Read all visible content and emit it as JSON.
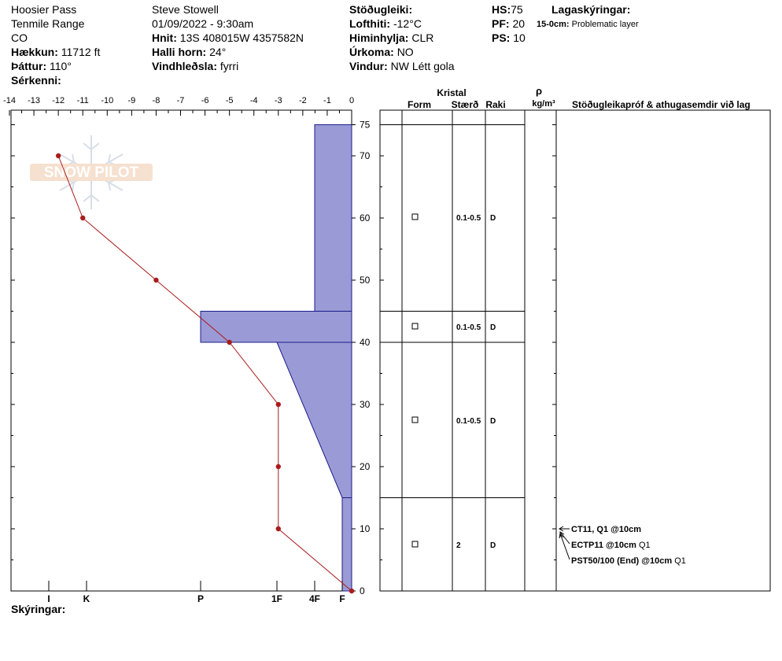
{
  "header": {
    "location": "Hoosier Pass",
    "range": "Tenmile Range",
    "state": "CO",
    "elevation_label": "Hækkun:",
    "elevation_value": "11712 ft",
    "aspect_label": "Þáttur:",
    "aspect_value": "110°",
    "features_label": "Sérkenni:",
    "observer": "Steve Stowell",
    "datetime": "01/09/2022 - 9:30am",
    "coords_label": "Hnit:",
    "coords_value": "13S 408015W 4357582N",
    "slope_label": "Halli horn:",
    "slope_value": "24°",
    "wind_loading_label": "Vindhleðsla:",
    "wind_loading_value": "fyrri",
    "stability_label": "Stöðugleiki:",
    "airtemp_label": "Lofthiti:",
    "airtemp_value": "-12°C",
    "sky_label": "Himinhylja:",
    "sky_value": "CLR",
    "precip_label": "Úrkoma:",
    "precip_value": "NO",
    "wind_label": "Vindur:",
    "wind_value": "NW Létt gola",
    "hs_label": "HS:",
    "hs_value": "75",
    "pf_label": "PF:",
    "pf_value": "20",
    "ps_label": "PS:",
    "ps_value": "10",
    "layer_notes_label": "Lagaskýringar:",
    "layer_note_depth": "15-0cm:",
    "layer_note_text": "Problematic layer",
    "comments_label": "Skýringar:"
  },
  "watermark": {
    "text": "SNOW PILOT"
  },
  "table": {
    "crystal_label": "Kristal",
    "form_label": "Form",
    "size_label": "Stærð",
    "moisture_label": "Raki",
    "rho_label": "ρ",
    "density_unit": "kg/m³",
    "tests_label": "Stöðugleikapróf & athugasemdir við lag",
    "rows": [
      {
        "size": "0.1-0.5",
        "moisture": "D"
      },
      {
        "size": "0.1-0.5",
        "moisture": "D"
      },
      {
        "size": "0.1-0.5",
        "moisture": "D"
      },
      {
        "size": "2",
        "moisture": "D"
      }
    ],
    "tests": [
      {
        "code": "CT11, Q1 @10cm",
        "quality": ""
      },
      {
        "code": "ECTP11 @10cm",
        "quality": "Q1"
      },
      {
        "code": "PST50/100 (End) @10cm",
        "quality": "Q1"
      }
    ]
  },
  "chart_data": {
    "type": "snow-profile",
    "temp_axis": {
      "ticks": [
        "-14",
        "-13",
        "-12",
        "-11",
        "-10",
        "-9",
        "-8",
        "-7",
        "-6",
        "-5",
        "-4",
        "-3",
        "-2",
        "-1",
        "0"
      ],
      "range": [
        -14,
        0
      ]
    },
    "height_axis": {
      "ticks": [
        "75",
        "70",
        "60",
        "50",
        "40",
        "30",
        "20",
        "10",
        "0"
      ],
      "range": [
        0,
        75
      ]
    },
    "hardness_axis": {
      "ticks": [
        "I",
        "K",
        "P",
        "1F",
        "4F",
        "F"
      ]
    },
    "temperature_profile": [
      {
        "height": 70,
        "temp": -12
      },
      {
        "height": 60,
        "temp": -11
      },
      {
        "height": 50,
        "temp": -8
      },
      {
        "height": 40,
        "temp": -5
      },
      {
        "height": 30,
        "temp": -3
      },
      {
        "height": 20,
        "temp": -3
      },
      {
        "height": 10,
        "temp": -3
      },
      {
        "height": 0,
        "temp": 0
      }
    ],
    "layers": [
      {
        "top": 75,
        "bottom": 45,
        "hardness_top": "4F-",
        "hardness_bottom": "4F-"
      },
      {
        "top": 45,
        "bottom": 40,
        "hardness_top": "P",
        "hardness_bottom": "P"
      },
      {
        "top": 40,
        "bottom": 15,
        "hardness_top": "1F",
        "hardness_bottom": "F"
      },
      {
        "top": 15,
        "bottom": 0,
        "hardness_top": "F",
        "hardness_bottom": "F"
      }
    ],
    "colors": {
      "layer_fill": "#9a9ad6",
      "layer_stroke": "#1c1c8c",
      "temp_line": "#aa1c1c",
      "temp_point": "#aa1c1c"
    }
  }
}
